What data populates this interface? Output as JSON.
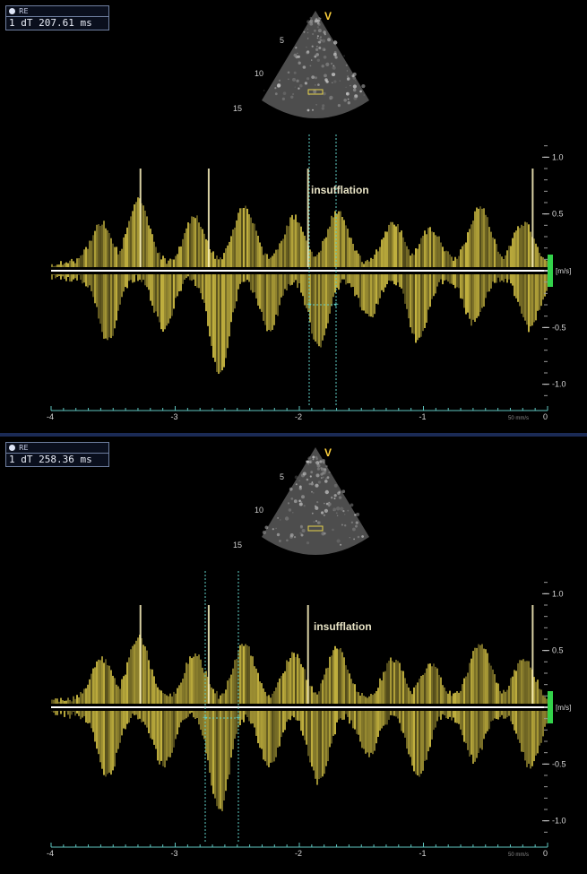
{
  "panels": [
    {
      "measure_index": "1",
      "measure_label": "dT",
      "measure_value": "207.61 ms",
      "annotation": "insufflation",
      "probe_marker": "V",
      "depth_labels": [
        "5",
        "10",
        "15"
      ],
      "velocity_unit": "[m/s]",
      "velocity_ticks": [
        "1.0",
        "0.5",
        "-0.5",
        "-1.0"
      ],
      "time_ticks": [
        "-4",
        "-3",
        "-2",
        "-1",
        "0"
      ],
      "sweep_speed": "50 mm/s"
    },
    {
      "measure_index": "1",
      "measure_label": "dT",
      "measure_value": "258.36 ms",
      "annotation": "insufflation",
      "probe_marker": "V",
      "depth_labels": [
        "5",
        "10",
        "15"
      ],
      "velocity_unit": "[m/s]",
      "velocity_ticks": [
        "1.0",
        "0.5",
        "-0.5",
        "-1.0"
      ],
      "time_ticks": [
        "-4",
        "-3",
        "-2",
        "-1",
        "0"
      ],
      "sweep_speed": "50 mm/s"
    }
  ],
  "colors": {
    "doppler": "#e6d24a",
    "baseline": "#ffffff",
    "caliper": "#5fd0c8",
    "scale_bar": "#33d24a",
    "axis": "#5fc6c0"
  }
}
